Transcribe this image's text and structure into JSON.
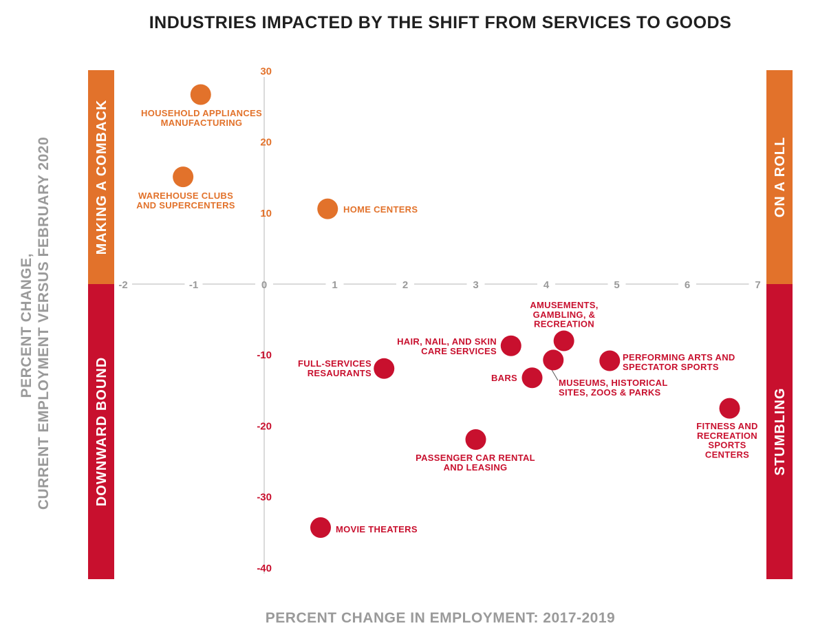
{
  "chart_data": {
    "type": "scatter",
    "title": "INDUSTRIES IMPACTED BY THE SHIFT FROM SERVICES TO GOODS",
    "xlabel": "PERCENT CHANGE IN EMPLOYMENT: 2017-2019",
    "ylabel": [
      "PERCENT CHANGE,",
      "CURRENT EMPLOYMENT VERSUS FEBRUARY 2020"
    ],
    "xlim": [
      -2,
      7
    ],
    "ylim": [
      -40,
      30
    ],
    "x_ticks": [
      -2,
      -1,
      0,
      1,
      2,
      3,
      4,
      5,
      6,
      7
    ],
    "y_ticks": [
      30,
      20,
      10,
      -10,
      -20,
      -30,
      -40
    ],
    "grid": false,
    "colors": {
      "positive": "#e2722b",
      "negative": "#c8102e",
      "axis": "#9a9a9a",
      "title": "#1f1f1f"
    },
    "quadrants": {
      "top_left": "MAKING A COMBACK",
      "top_right": "ON A ROLL",
      "bottom_left": "DOWNWARD BOUND",
      "bottom_right": "STUMBLING"
    },
    "points": [
      {
        "x": -0.9,
        "y": 26.7,
        "label": [
          "HOUSEHOLD APPLIANCES",
          "MANUFACTURING"
        ]
      },
      {
        "x": -1.15,
        "y": 15.1,
        "label": [
          "WAREHOUSE CLUBS",
          "AND SUPERCENTERS"
        ]
      },
      {
        "x": 0.9,
        "y": 10.6,
        "label": [
          "HOME CENTERS"
        ]
      },
      {
        "x": 4.25,
        "y": -8.0,
        "label": [
          "AMUSEMENTS,",
          "GAMBLING, &",
          "RECREATION"
        ]
      },
      {
        "x": 3.5,
        "y": -8.7,
        "label": [
          "HAIR, NAIL, AND SKIN",
          "CARE SERVICES"
        ]
      },
      {
        "x": 4.9,
        "y": -10.8,
        "label": [
          "PERFORMING ARTS AND",
          "SPECTATOR SPORTS"
        ]
      },
      {
        "x": 4.1,
        "y": -10.7,
        "label": [
          "MUSEUMS, HISTORICAL",
          "SITES, ZOOS & PARKS"
        ]
      },
      {
        "x": 1.7,
        "y": -11.9,
        "label": [
          "FULL-SERVICES",
          "RESAURANTS"
        ]
      },
      {
        "x": 3.8,
        "y": -13.2,
        "label": [
          "BARS"
        ]
      },
      {
        "x": 6.6,
        "y": -17.5,
        "label": [
          "FITNESS AND",
          "RECREATION",
          "SPORTS",
          "CENTERS"
        ]
      },
      {
        "x": 3.0,
        "y": -21.9,
        "label": [
          "PASSENGER CAR RENTAL",
          "AND LEASING"
        ]
      },
      {
        "x": 0.8,
        "y": -34.3,
        "label": [
          "MOVIE THEATERS"
        ]
      }
    ]
  }
}
